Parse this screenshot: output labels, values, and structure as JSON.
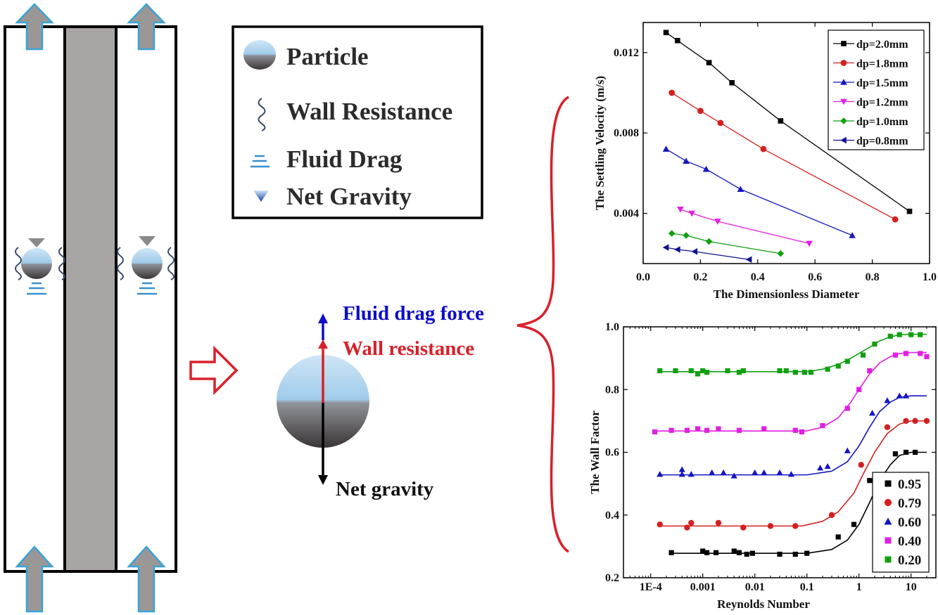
{
  "legend": {
    "particle": "Particle",
    "wall_resistance": "Wall Resistance",
    "fluid_drag": "Fluid Drag",
    "net_gravity": "Net Gravity"
  },
  "forces": {
    "fluid_drag": "Fluid drag force",
    "wall_resistance": "Wall resistance",
    "net_gravity": "Net gravity"
  },
  "colors": {
    "blue": "#0d0dc8",
    "red": "#d8202a",
    "pipe_gray": "#aaa5a5",
    "arrow_outline": "#3aa3d6"
  },
  "chart_data": [
    {
      "type": "line",
      "xlabel": "The Dimensionless Diameter",
      "ylabel": "The Settling Velocity (m/s)",
      "xlim": [
        0.0,
        1.0
      ],
      "ylim": [
        0.0015,
        0.0135
      ],
      "xticks": [
        "0.0",
        "0.2",
        "0.4",
        "0.6",
        "0.8",
        "1.0"
      ],
      "xtick_values": [
        0,
        0.2,
        0.4,
        0.6,
        0.8,
        1.0
      ],
      "yticks": [
        "0.004",
        "0.008",
        "0.012"
      ],
      "ytick_values": [
        0.004,
        0.008,
        0.012
      ],
      "legend_position": "top-right",
      "series": [
        {
          "name": "dp=2.0mm",
          "color": "#000000",
          "marker": "square",
          "x": [
            0.08,
            0.12,
            0.23,
            0.31,
            0.48,
            0.93
          ],
          "y": [
            0.013,
            0.0126,
            0.0115,
            0.0105,
            0.0086,
            0.0041
          ]
        },
        {
          "name": "dp=1.8mm",
          "color": "#d42020",
          "marker": "circle",
          "x": [
            0.1,
            0.2,
            0.27,
            0.42,
            0.88
          ],
          "y": [
            0.01,
            0.0091,
            0.0085,
            0.0072,
            0.0037
          ]
        },
        {
          "name": "dp=1.5mm",
          "color": "#1515c0",
          "marker": "triangle-up",
          "x": [
            0.08,
            0.15,
            0.22,
            0.34,
            0.73
          ],
          "y": [
            0.0072,
            0.0066,
            0.0062,
            0.0052,
            0.0029
          ]
        },
        {
          "name": "dp=1.2mm",
          "color": "#e020e0",
          "marker": "triangle-down",
          "x": [
            0.13,
            0.17,
            0.26,
            0.58
          ],
          "y": [
            0.0042,
            0.004,
            0.0036,
            0.0025
          ]
        },
        {
          "name": "dp=1.0mm",
          "color": "#10a010",
          "marker": "diamond",
          "x": [
            0.1,
            0.15,
            0.23,
            0.48
          ],
          "y": [
            0.003,
            0.0029,
            0.0026,
            0.002
          ]
        },
        {
          "name": "dp=0.8mm",
          "color": "#101090",
          "marker": "triangle-left",
          "x": [
            0.08,
            0.12,
            0.18,
            0.37
          ],
          "y": [
            0.0023,
            0.0022,
            0.0021,
            0.0017
          ]
        }
      ]
    },
    {
      "type": "scatter",
      "xlabel": "Reynolds Number",
      "ylabel": "The Wall Factor",
      "xscale": "log",
      "xlim": [
        3e-05,
        30
      ],
      "ylim": [
        0.2,
        1.0
      ],
      "xticks": [
        "1E-4",
        "0.001",
        "0.01",
        "0.1",
        "1",
        "10"
      ],
      "xtick_values": [
        0.0001,
        0.001,
        0.01,
        0.1,
        1,
        10
      ],
      "yticks": [
        "0.2",
        "0.4",
        "0.6",
        "0.8",
        "1.0"
      ],
      "ytick_values": [
        0.2,
        0.4,
        0.6,
        0.8,
        1.0
      ],
      "legend_position": "bottom-right",
      "series": [
        {
          "name": "0.95",
          "color": "#000000",
          "marker": "square",
          "x": [
            0.00025,
            0.001,
            0.0012,
            0.0018,
            0.004,
            0.005,
            0.007,
            0.009,
            0.03,
            0.06,
            0.1,
            0.4,
            0.8,
            1.6,
            5,
            8,
            12
          ],
          "y": [
            0.28,
            0.285,
            0.28,
            0.28,
            0.285,
            0.28,
            0.275,
            0.278,
            0.275,
            0.275,
            0.278,
            0.33,
            0.37,
            0.51,
            0.595,
            0.6,
            0.6
          ],
          "fit_x": [
            0.00025,
            0.1,
            0.3,
            0.6,
            1.0,
            1.6,
            2.5,
            4,
            6,
            10,
            20
          ],
          "fit_y": [
            0.278,
            0.278,
            0.29,
            0.32,
            0.37,
            0.44,
            0.51,
            0.56,
            0.59,
            0.6,
            0.6
          ]
        },
        {
          "name": "0.79",
          "color": "#d42020",
          "marker": "circle",
          "x": [
            0.00015,
            0.0005,
            0.0006,
            0.002,
            0.006,
            0.02,
            0.06,
            0.3,
            1.1,
            3.5,
            8,
            12,
            20
          ],
          "y": [
            0.37,
            0.36,
            0.375,
            0.375,
            0.36,
            0.365,
            0.365,
            0.4,
            0.56,
            0.68,
            0.7,
            0.7,
            0.7
          ],
          "fit_x": [
            0.00015,
            0.08,
            0.2,
            0.4,
            0.8,
            1.2,
            2,
            3.5,
            6,
            10,
            20
          ],
          "fit_y": [
            0.365,
            0.365,
            0.38,
            0.41,
            0.47,
            0.53,
            0.6,
            0.66,
            0.69,
            0.7,
            0.7
          ]
        },
        {
          "name": "0.60",
          "color": "#1515c0",
          "marker": "triangle-up",
          "x": [
            0.00015,
            0.0004,
            0.0004,
            0.0006,
            0.0015,
            0.0025,
            0.004,
            0.01,
            0.015,
            0.03,
            0.05,
            0.18,
            0.25,
            0.6,
            1.8,
            3.5,
            6,
            8
          ],
          "y": [
            0.53,
            0.545,
            0.53,
            0.53,
            0.535,
            0.535,
            0.525,
            0.535,
            0.535,
            0.535,
            0.53,
            0.55,
            0.555,
            0.605,
            0.725,
            0.765,
            0.78,
            0.78
          ],
          "fit_x": [
            0.00015,
            0.1,
            0.3,
            0.6,
            1.0,
            1.6,
            2.5,
            4,
            6,
            10,
            20
          ],
          "fit_y": [
            0.528,
            0.528,
            0.54,
            0.57,
            0.62,
            0.68,
            0.73,
            0.76,
            0.775,
            0.78,
            0.78
          ]
        },
        {
          "name": "0.40",
          "color": "#e020e0",
          "marker": "square",
          "x": [
            0.00012,
            0.00025,
            0.0005,
            0.0008,
            0.0012,
            0.002,
            0.005,
            0.015,
            0.06,
            0.08,
            0.2,
            0.6,
            1.0,
            1.6,
            5,
            8,
            15,
            20
          ],
          "y": [
            0.665,
            0.67,
            0.67,
            0.675,
            0.67,
            0.675,
            0.67,
            0.675,
            0.67,
            0.665,
            0.685,
            0.74,
            0.8,
            0.86,
            0.91,
            0.915,
            0.915,
            0.905
          ],
          "fit_x": [
            0.00012,
            0.1,
            0.2,
            0.4,
            0.7,
            1.0,
            1.6,
            2.5,
            4,
            6,
            10,
            20
          ],
          "fit_y": [
            0.668,
            0.668,
            0.68,
            0.71,
            0.76,
            0.8,
            0.85,
            0.885,
            0.905,
            0.915,
            0.918,
            0.918
          ]
        },
        {
          "name": "0.20",
          "color": "#10a010",
          "marker": "square",
          "x": [
            0.00015,
            0.0003,
            0.0006,
            0.0008,
            0.001,
            0.0012,
            0.003,
            0.005,
            0.006,
            0.03,
            0.04,
            0.06,
            0.09,
            0.12,
            0.25,
            0.4,
            0.6,
            1.2,
            2.0,
            4,
            6,
            10,
            15
          ],
          "y": [
            0.86,
            0.86,
            0.86,
            0.85,
            0.86,
            0.855,
            0.86,
            0.855,
            0.86,
            0.86,
            0.86,
            0.855,
            0.855,
            0.855,
            0.865,
            0.875,
            0.89,
            0.91,
            0.945,
            0.97,
            0.975,
            0.975,
            0.975
          ],
          "fit_x": [
            0.00015,
            0.1,
            0.2,
            0.4,
            0.7,
            1.0,
            1.6,
            2.5,
            4,
            6,
            10,
            20
          ],
          "fit_y": [
            0.857,
            0.857,
            0.865,
            0.88,
            0.9,
            0.915,
            0.935,
            0.955,
            0.968,
            0.975,
            0.976,
            0.976
          ]
        }
      ]
    }
  ]
}
